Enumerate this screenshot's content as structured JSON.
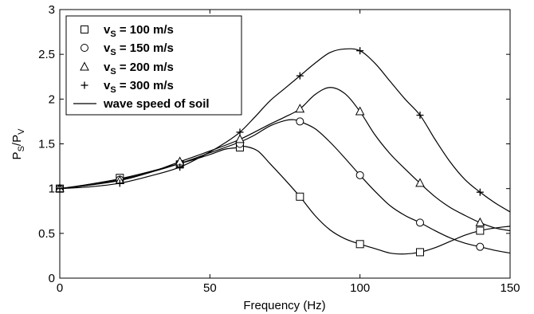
{
  "chart_data": {
    "type": "line",
    "xlabel": "Frequency (Hz)",
    "ylabel_main": "P",
    "ylabel_sub1": "S",
    "ylabel_sep": "/P",
    "ylabel_sub2": "V",
    "xlim": [
      0,
      150
    ],
    "ylim": [
      0,
      3
    ],
    "xticks": [
      "0",
      "50",
      "100",
      "150"
    ],
    "yticks": [
      "0",
      "0.5",
      "1",
      "1.5",
      "2",
      "2.5",
      "3"
    ],
    "grid": false,
    "legend_position": "top-left",
    "series": [
      {
        "name": "v_S = 100 m/s",
        "legend_main": "v",
        "legend_sub": "S",
        "legend_rest": " = 100 m/s",
        "marker": "square",
        "line": [
          [
            0,
            1
          ],
          [
            10,
            1.05
          ],
          [
            20,
            1.11
          ],
          [
            30,
            1.19
          ],
          [
            40,
            1.28
          ],
          [
            50,
            1.38
          ],
          [
            55,
            1.44
          ],
          [
            60,
            1.46
          ],
          [
            62,
            1.47
          ],
          [
            66,
            1.42
          ],
          [
            70,
            1.28
          ],
          [
            75,
            1.1
          ],
          [
            80,
            0.91
          ],
          [
            85,
            0.7
          ],
          [
            90,
            0.54
          ],
          [
            95,
            0.44
          ],
          [
            100,
            0.38
          ],
          [
            105,
            0.33
          ],
          [
            110,
            0.28
          ],
          [
            115,
            0.27
          ],
          [
            120,
            0.29
          ],
          [
            125,
            0.34
          ],
          [
            130,
            0.41
          ],
          [
            135,
            0.48
          ],
          [
            140,
            0.53
          ],
          [
            145,
            0.56
          ],
          [
            150,
            0.58
          ]
        ],
        "markers": [
          [
            0,
            1
          ],
          [
            20,
            1.12
          ],
          [
            40,
            1.27
          ],
          [
            60,
            1.46
          ],
          [
            80,
            0.91
          ],
          [
            100,
            0.38
          ],
          [
            120,
            0.29
          ],
          [
            140,
            0.53
          ]
        ]
      },
      {
        "name": "v_S = 150 m/s",
        "legend_main": "v",
        "legend_sub": "S",
        "legend_rest": " = 150 m/s",
        "marker": "circle",
        "line": [
          [
            0,
            1
          ],
          [
            10,
            1.04
          ],
          [
            20,
            1.1
          ],
          [
            30,
            1.18
          ],
          [
            40,
            1.28
          ],
          [
            50,
            1.4
          ],
          [
            60,
            1.52
          ],
          [
            65,
            1.6
          ],
          [
            70,
            1.7
          ],
          [
            75,
            1.76
          ],
          [
            78,
            1.77
          ],
          [
            80,
            1.75
          ],
          [
            85,
            1.67
          ],
          [
            90,
            1.52
          ],
          [
            95,
            1.34
          ],
          [
            100,
            1.15
          ],
          [
            105,
            0.97
          ],
          [
            110,
            0.81
          ],
          [
            115,
            0.7
          ],
          [
            120,
            0.62
          ],
          [
            125,
            0.53
          ],
          [
            130,
            0.45
          ],
          [
            135,
            0.39
          ],
          [
            140,
            0.35
          ],
          [
            145,
            0.31
          ],
          [
            150,
            0.28
          ]
        ],
        "markers": [
          [
            0,
            1
          ],
          [
            20,
            1.1
          ],
          [
            40,
            1.28
          ],
          [
            60,
            1.5
          ],
          [
            80,
            1.75
          ],
          [
            100,
            1.15
          ],
          [
            120,
            0.62
          ],
          [
            140,
            0.35
          ]
        ]
      },
      {
        "name": "v_S = 200 m/s",
        "legend_main": "v",
        "legend_sub": "S",
        "legend_rest": " = 200 m/s",
        "marker": "triangle",
        "line": [
          [
            0,
            1
          ],
          [
            10,
            1.04
          ],
          [
            20,
            1.09
          ],
          [
            30,
            1.18
          ],
          [
            40,
            1.3
          ],
          [
            50,
            1.42
          ],
          [
            60,
            1.55
          ],
          [
            70,
            1.72
          ],
          [
            75,
            1.8
          ],
          [
            80,
            1.89
          ],
          [
            85,
            2.05
          ],
          [
            90,
            2.13
          ],
          [
            95,
            2.06
          ],
          [
            100,
            1.86
          ],
          [
            105,
            1.6
          ],
          [
            110,
            1.39
          ],
          [
            115,
            1.22
          ],
          [
            120,
            1.06
          ],
          [
            125,
            0.91
          ],
          [
            130,
            0.79
          ],
          [
            135,
            0.7
          ],
          [
            140,
            0.62
          ],
          [
            145,
            0.56
          ],
          [
            150,
            0.53
          ]
        ],
        "markers": [
          [
            0,
            1
          ],
          [
            20,
            1.09
          ],
          [
            40,
            1.3
          ],
          [
            60,
            1.55
          ],
          [
            80,
            1.89
          ],
          [
            100,
            1.86
          ],
          [
            120,
            1.06
          ],
          [
            140,
            0.62
          ]
        ]
      },
      {
        "name": "v_S = 300 m/s",
        "legend_main": "v",
        "legend_sub": "S",
        "legend_rest": " = 300 m/s",
        "marker": "plus",
        "line": [
          [
            0,
            1
          ],
          [
            10,
            1.02
          ],
          [
            20,
            1.06
          ],
          [
            30,
            1.14
          ],
          [
            40,
            1.24
          ],
          [
            50,
            1.41
          ],
          [
            55,
            1.51
          ],
          [
            60,
            1.63
          ],
          [
            65,
            1.8
          ],
          [
            70,
            1.98
          ],
          [
            75,
            2.12
          ],
          [
            80,
            2.26
          ],
          [
            85,
            2.4
          ],
          [
            90,
            2.52
          ],
          [
            95,
            2.56
          ],
          [
            100,
            2.54
          ],
          [
            105,
            2.4
          ],
          [
            110,
            2.2
          ],
          [
            115,
            2.0
          ],
          [
            120,
            1.82
          ],
          [
            125,
            1.55
          ],
          [
            130,
            1.3
          ],
          [
            135,
            1.1
          ],
          [
            140,
            0.96
          ],
          [
            145,
            0.84
          ],
          [
            150,
            0.74
          ]
        ],
        "markers": [
          [
            0,
            1
          ],
          [
            20,
            1.06
          ],
          [
            40,
            1.24
          ],
          [
            60,
            1.63
          ],
          [
            80,
            2.26
          ],
          [
            100,
            2.54
          ],
          [
            120,
            1.82
          ],
          [
            140,
            0.96
          ]
        ]
      },
      {
        "name": "wave speed of soil",
        "legend_main": "wave speed of soil",
        "legend_sub": "",
        "legend_rest": "",
        "marker": "line"
      }
    ]
  }
}
